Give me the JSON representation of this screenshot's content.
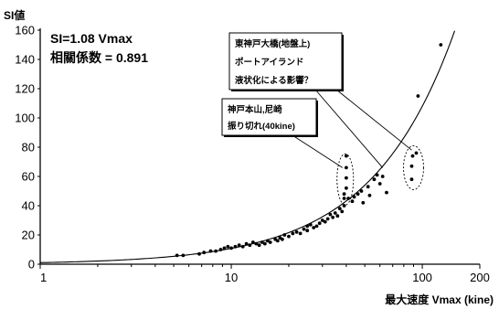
{
  "chart_data": {
    "type": "scatter",
    "xlabel": "最大速度 Vmax (kine)",
    "ylabel": "SI値",
    "x_scale": "log",
    "xlim": [
      1,
      200
    ],
    "ylim": [
      0,
      160
    ],
    "x_ticks": [
      1,
      10,
      100,
      200
    ],
    "y_ticks": [
      0,
      20,
      40,
      60,
      80,
      100,
      120,
      140,
      160
    ],
    "grid": false,
    "fit_line": {
      "formula": "SI=1.08 Vmax",
      "slope": 1.08
    },
    "stats": [
      "SI=1.08 Vmax",
      "相關係数 = 0.891"
    ],
    "points": [
      [
        5.2,
        6
      ],
      [
        5.6,
        6
      ],
      [
        6.8,
        7
      ],
      [
        7.2,
        8
      ],
      [
        7.8,
        9
      ],
      [
        8.3,
        9
      ],
      [
        8.8,
        10
      ],
      [
        9.2,
        11
      ],
      [
        9.6,
        12
      ],
      [
        10,
        11
      ],
      [
        10.5,
        12
      ],
      [
        11,
        13
      ],
      [
        11.5,
        12
      ],
      [
        12,
        14
      ],
      [
        12.5,
        13
      ],
      [
        13,
        15
      ],
      [
        13.5,
        14
      ],
      [
        14,
        13
      ],
      [
        14.5,
        15
      ],
      [
        15,
        14
      ],
      [
        15.5,
        16
      ],
      [
        16,
        15
      ],
      [
        17,
        17
      ],
      [
        17.5,
        16
      ],
      [
        18,
        18
      ],
      [
        18.5,
        17
      ],
      [
        19,
        20
      ],
      [
        20,
        19
      ],
      [
        21,
        21
      ],
      [
        22,
        22
      ],
      [
        23,
        21
      ],
      [
        24,
        24
      ],
      [
        25,
        23
      ],
      [
        25,
        26
      ],
      [
        26,
        27
      ],
      [
        27,
        25
      ],
      [
        28,
        26
      ],
      [
        29,
        28
      ],
      [
        30,
        30
      ],
      [
        31,
        29
      ],
      [
        32,
        31
      ],
      [
        33,
        34
      ],
      [
        34,
        32
      ],
      [
        35,
        35
      ],
      [
        36,
        33
      ],
      [
        37,
        38
      ],
      [
        38,
        36
      ],
      [
        39,
        40
      ],
      [
        39,
        45
      ],
      [
        39,
        48
      ],
      [
        40,
        52
      ],
      [
        40,
        59
      ],
      [
        40,
        66
      ],
      [
        40,
        74
      ],
      [
        41,
        45
      ],
      [
        43,
        43
      ],
      [
        44,
        46
      ],
      [
        46,
        48
      ],
      [
        48,
        50
      ],
      [
        49,
        42
      ],
      [
        52,
        53
      ],
      [
        53,
        47
      ],
      [
        56,
        58
      ],
      [
        58,
        61
      ],
      [
        60,
        55
      ],
      [
        62,
        60
      ],
      [
        65,
        49
      ],
      [
        88,
        58
      ],
      [
        88,
        67
      ],
      [
        89,
        74
      ],
      [
        93,
        76
      ],
      [
        95,
        115
      ],
      [
        125,
        150
      ]
    ],
    "annotations": [
      {
        "lines": [
          "神戸本山,尼崎",
          "振り切れ(40kine)"
        ]
      },
      {
        "lines": [
          "東神戸大橋(地盤上)",
          "ポートアイランド",
          "液状化による影響？"
        ]
      }
    ]
  }
}
